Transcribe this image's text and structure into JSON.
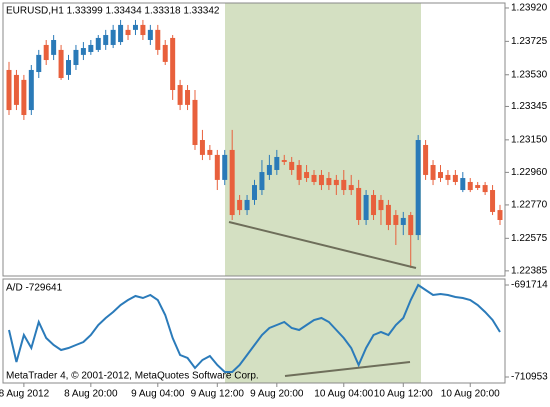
{
  "chart_data": [
    {
      "type": "candlestick",
      "title": "EURUSD,H1  1.33399 1.33434 1.33318 1.33342",
      "up_color": "#2a7ab8",
      "down_color": "#e8603c",
      "open": [
        1.23558,
        1.23529,
        1.235,
        1.23324,
        1.23546,
        1.23704,
        1.23646,
        1.23675,
        1.23529,
        1.23587,
        1.23646,
        1.23663,
        1.23675,
        1.23704,
        1.23704,
        1.23721,
        1.23792,
        1.23792,
        1.23821,
        1.23733,
        1.23792,
        1.23704,
        1.23745,
        1.2347,
        1.23441,
        1.23383,
        1.23149,
        1.23091,
        1.23062,
        1.22916,
        1.23091,
        1.22799,
        1.2274,
        1.22799,
        1.22857,
        1.22945,
        1.22974,
        1.23032,
        1.23021,
        1.23003,
        1.22962,
        1.22945,
        1.22945,
        1.22927,
        1.22916,
        1.22916,
        1.22886,
        1.22869,
        1.22682,
        1.22828,
        1.22799,
        1.2277,
        1.22711,
        1.22653,
        1.22711,
        1.22594,
        1.2312,
        1.23003,
        1.22962,
        1.22945,
        1.22945,
        1.22857,
        1.22904,
        1.22886,
        1.22886,
        1.22857,
        1.2274
      ],
      "high": [
        1.23605,
        1.23558,
        1.23529,
        1.23587,
        1.23675,
        1.23733,
        1.23762,
        1.23704,
        1.23646,
        1.23704,
        1.23721,
        1.23733,
        1.23762,
        1.23792,
        1.23821,
        1.2385,
        1.23821,
        1.2385,
        1.2385,
        1.23821,
        1.23821,
        1.23733,
        1.23762,
        1.235,
        1.2347,
        1.23441,
        1.23208,
        1.2312,
        1.23091,
        1.23091,
        1.23208,
        1.22828,
        1.22828,
        1.22916,
        1.23032,
        1.23062,
        1.23091,
        1.23062,
        1.2305,
        1.23032,
        1.23003,
        1.22974,
        1.22974,
        1.22962,
        1.22945,
        1.22974,
        1.22945,
        1.22916,
        1.22857,
        1.22857,
        1.22828,
        1.22799,
        1.2274,
        1.22729,
        1.22729,
        1.23178,
        1.23149,
        1.23032,
        1.23003,
        1.22974,
        1.22974,
        1.22962,
        1.22927,
        1.22904,
        1.22904,
        1.22886,
        1.2277
      ],
      "low": [
        1.23295,
        1.23324,
        1.23266,
        1.23295,
        1.23511,
        1.23587,
        1.23616,
        1.235,
        1.235,
        1.23558,
        1.23616,
        1.23646,
        1.23663,
        1.23675,
        1.23686,
        1.23704,
        1.23733,
        1.23762,
        1.23733,
        1.23704,
        1.23646,
        1.23587,
        1.23383,
        1.23324,
        1.23324,
        1.23091,
        1.23032,
        1.23032,
        1.22857,
        1.22886,
        1.22682,
        1.22711,
        1.22711,
        1.2277,
        1.22828,
        1.22916,
        1.22945,
        1.23003,
        1.22945,
        1.22886,
        1.22904,
        1.22886,
        1.22857,
        1.22857,
        1.22828,
        1.22828,
        1.22828,
        1.22653,
        1.22653,
        1.22682,
        1.22653,
        1.22623,
        1.22536,
        1.22594,
        1.22402,
        1.22565,
        1.22916,
        1.22886,
        1.22904,
        1.22886,
        1.22886,
        1.22845,
        1.22845,
        1.22857,
        1.22828,
        1.22711,
        1.22653
      ],
      "close": [
        1.23324,
        1.23354,
        1.23295,
        1.23558,
        1.23646,
        1.23616,
        1.23733,
        1.23511,
        1.23616,
        1.23675,
        1.23686,
        1.23704,
        1.23745,
        1.23762,
        1.23792,
        1.23821,
        1.23762,
        1.23821,
        1.23762,
        1.23792,
        1.23675,
        1.23605,
        1.23441,
        1.23354,
        1.23354,
        1.2312,
        1.23062,
        1.23062,
        1.22916,
        1.23062,
        1.22711,
        1.2274,
        1.22799,
        1.22886,
        1.22962,
        1.23003,
        1.2305,
        1.23021,
        1.22974,
        1.22916,
        1.22927,
        1.22904,
        1.22886,
        1.22886,
        1.22886,
        1.22857,
        1.22857,
        1.22682,
        1.22828,
        1.22711,
        1.2274,
        1.22653,
        1.22653,
        1.22694,
        1.22594,
        1.23149,
        1.22945,
        1.22916,
        1.22927,
        1.22916,
        1.22904,
        1.22927,
        1.22857,
        1.22869,
        1.22845,
        1.22729,
        1.22682
      ],
      "ylim": [
        1.22355,
        1.23949
      ],
      "yticks": [
        {
          "value": 1.2392,
          "label": "1.23920"
        },
        1.23725,
        {
          "value": 1.2353,
          "label": "1.23530"
        },
        1.23345,
        {
          "value": 1.2315,
          "label": "1.23150"
        },
        {
          "value": 1.2296,
          "label": "1.22960"
        },
        {
          "value": 1.2277,
          "label": "1.22770"
        },
        1.22575,
        1.22385
      ],
      "xticks": [
        {
          "value": 2,
          "label": "8 Aug 2012"
        },
        {
          "value": 11,
          "label": "8 Aug 20:00"
        },
        {
          "value": 20,
          "label": "9 Aug 04:00"
        },
        {
          "value": 28,
          "label": "9 Aug 12:00"
        },
        {
          "value": 36,
          "label": "9 Aug 20:00"
        },
        {
          "value": 45,
          "label": "10 Aug 04:00"
        },
        {
          "value": 53,
          "label": "10 Aug 12:00"
        },
        {
          "value": 62,
          "label": "10 Aug 20:00"
        }
      ]
    },
    {
      "type": "line",
      "title": "A/D -729641",
      "color": "#2b7bba",
      "values": [
        -701124,
        -707815,
        -702169,
        -704887,
        -699451,
        -702796,
        -704260,
        -705306,
        -704887,
        -704260,
        -703633,
        -702169,
        -700078,
        -698614,
        -697360,
        -695896,
        -694851,
        -694014,
        -694432,
        -693805,
        -694851,
        -697987,
        -702796,
        -706351,
        -706978,
        -709069,
        -707397,
        -706560,
        -708442,
        -709906,
        -709906,
        -708442,
        -706351,
        -704260,
        -702169,
        -700705,
        -700078,
        -699451,
        -700705,
        -701124,
        -700078,
        -699033,
        -698614,
        -699451,
        -701124,
        -702796,
        -704887,
        -708442,
        -704887,
        -702169,
        -701542,
        -702169,
        -700078,
        -698614,
        -694851,
        -691714,
        -692760,
        -693805,
        -693596,
        -693805,
        -694223,
        -694432,
        -694851,
        -695896,
        -697360,
        -699033,
        -701542
      ],
      "ylim": [
        -712206,
        -690459
      ],
      "yticks": [
        -691714,
        -710953
      ],
      "annotation": "MetaTrader 4, © 2001-2012, MetaQuotes Software Corp."
    }
  ]
}
